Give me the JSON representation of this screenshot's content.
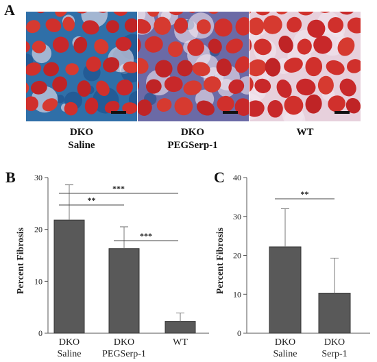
{
  "panel_a": {
    "letter": "A",
    "images": [
      {
        "caption": [
          "DKO",
          "Saline"
        ],
        "stain": "heavy-blue-fibrosis"
      },
      {
        "caption": [
          "DKO",
          "PEGSerp-1"
        ],
        "stain": "light-blue-fibrosis"
      },
      {
        "caption": [
          "WT"
        ],
        "stain": "minimal-fibrosis"
      }
    ]
  },
  "chart_data": [
    {
      "panel": "B",
      "type": "bar",
      "ylabel": "Percent Fibrosis",
      "ylim": [
        0,
        30
      ],
      "yticks": [
        0,
        10,
        20,
        30
      ],
      "categories": [
        [
          "DKO",
          "Saline"
        ],
        [
          "DKO",
          "PEGSerp-1"
        ],
        [
          "WT"
        ]
      ],
      "values": [
        21.8,
        16.3,
        2.3
      ],
      "errors": [
        6.8,
        4.2,
        1.6
      ],
      "bar_color": "#595959",
      "significance": [
        {
          "from": 0,
          "to": 1,
          "label": "**"
        },
        {
          "from": 0,
          "to": 2,
          "label": "***"
        },
        {
          "from": 1,
          "to": 2,
          "label": "***"
        }
      ]
    },
    {
      "panel": "C",
      "type": "bar",
      "ylabel": "Percent Fibrosis",
      "ylim": [
        0,
        40
      ],
      "yticks": [
        0,
        10,
        20,
        30,
        40
      ],
      "categories": [
        [
          "DKO",
          "Saline"
        ],
        [
          "DKO",
          "Serp-1"
        ]
      ],
      "values": [
        22.2,
        10.3
      ],
      "errors": [
        9.8,
        9.0
      ],
      "bar_color": "#595959",
      "significance": [
        {
          "from": 0,
          "to": 1,
          "label": "**"
        }
      ]
    }
  ]
}
